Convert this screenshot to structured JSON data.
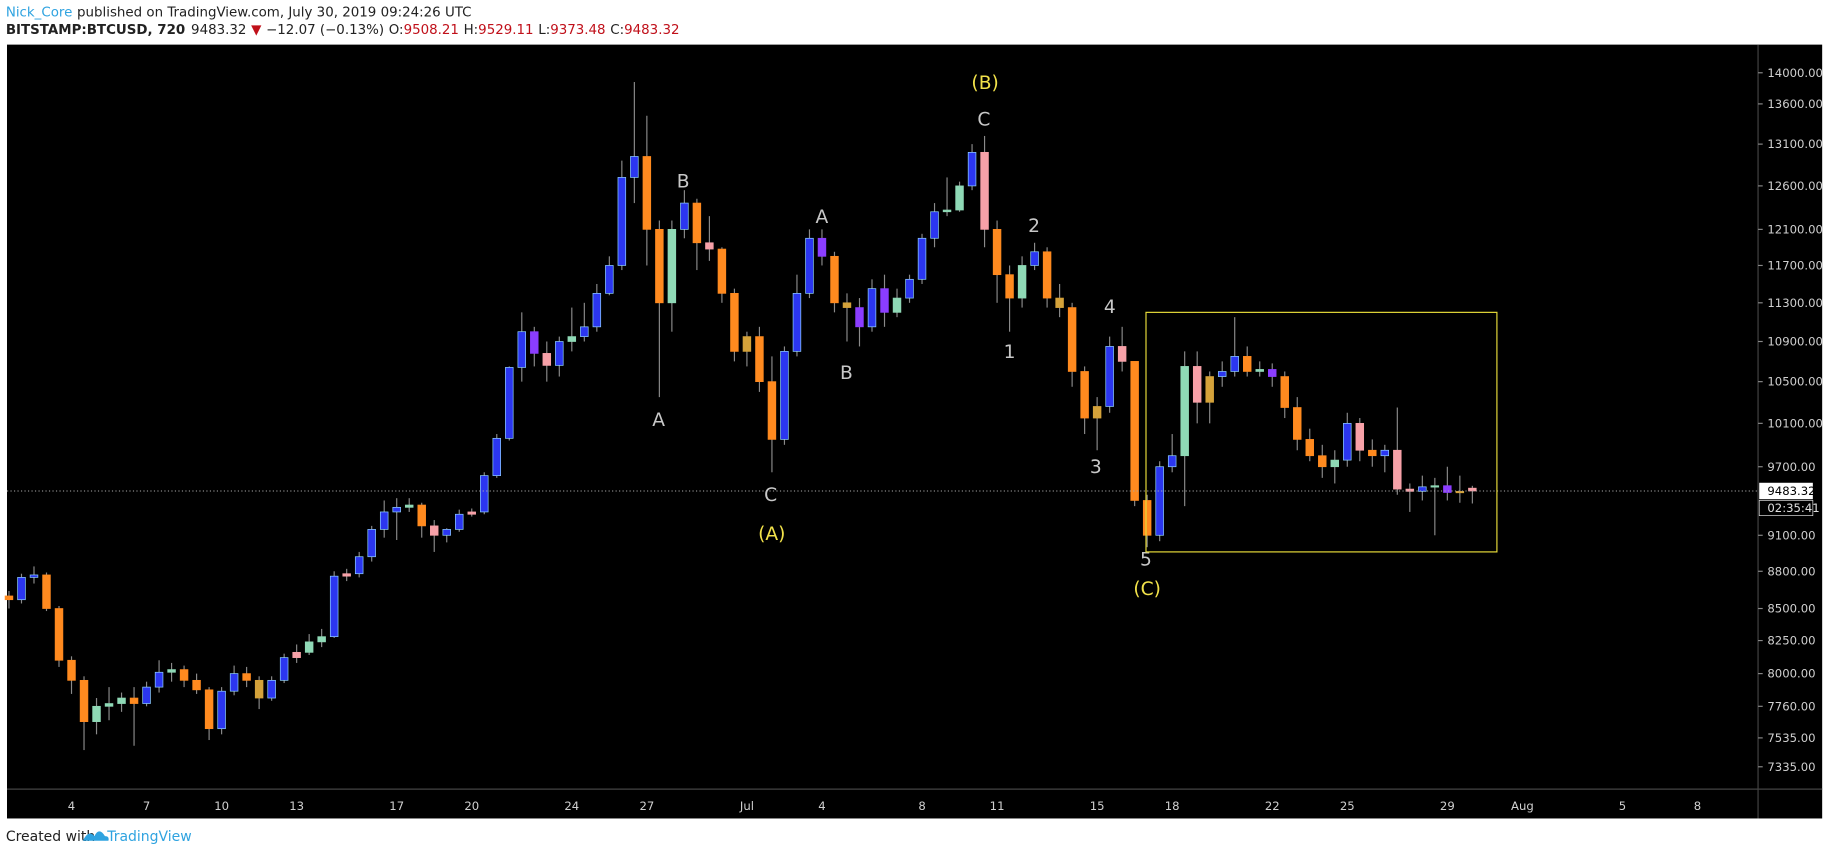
{
  "header": {
    "author": "Nick_Core",
    "published": "published on TradingView.com, July 30, 2019 09:24:26 UTC",
    "symbol": "BITSTAMP:BTCUSD, 720",
    "last": "9483.32",
    "arrow": "▼",
    "change": "−12.07 (−0.13%)",
    "o_label": "O:",
    "o": "9508.21",
    "h_label": "H:",
    "h": "9529.11",
    "l_label": "L:",
    "l": "9373.48",
    "c_label": "C:",
    "c": "9483.32"
  },
  "footer": {
    "created": "Created with",
    "brand": "TradingView"
  },
  "chart_data": {
    "type": "candlestick",
    "log": true,
    "ylim": [
      7184,
      14372
    ],
    "yticks": [
      {
        "value": 14000,
        "label": "14000.00"
      },
      {
        "value": 13600,
        "label": "13600.00"
      },
      {
        "value": 13100,
        "label": "13100.00"
      },
      {
        "value": 12600,
        "label": "12600.00"
      },
      {
        "value": 12100,
        "label": "12100.00"
      },
      {
        "value": 11700,
        "label": "11700.00"
      },
      {
        "value": 11300,
        "label": "11300.00"
      },
      {
        "value": 10900,
        "label": "10900.00"
      },
      {
        "value": 10500,
        "label": "10500.00"
      },
      {
        "value": 10100,
        "label": "10100.00"
      },
      {
        "value": 9700,
        "label": "9700.00"
      },
      {
        "value": 9100,
        "label": "9100.00"
      },
      {
        "value": 8800,
        "label": "8800.00"
      },
      {
        "value": 8500,
        "label": "8500.00"
      },
      {
        "value": 8250,
        "label": "8250.00"
      },
      {
        "value": 8000,
        "label": "8000.00"
      },
      {
        "value": 7760,
        "label": "7760.00"
      },
      {
        "value": 7535,
        "label": "7535.00"
      },
      {
        "value": 7335,
        "label": "7335.00"
      }
    ],
    "categories": [
      null,
      null,
      null,
      null,
      null,
      "4",
      null,
      null,
      null,
      null,
      null,
      "7",
      null,
      null,
      null,
      null,
      null,
      "10",
      null,
      null,
      null,
      null,
      null,
      "13",
      null,
      null,
      null,
      null,
      null,
      null,
      null,
      "17",
      null,
      null,
      null,
      null,
      null,
      "20",
      null,
      null,
      null,
      null,
      null,
      null,
      null,
      "24",
      null,
      null,
      null,
      null,
      null,
      "27",
      null,
      null,
      null,
      null,
      null,
      null,
      null,
      "Jul",
      null,
      null,
      null,
      null,
      null,
      "4",
      null,
      null,
      null,
      null,
      null,
      null,
      null,
      "8",
      null,
      null,
      null,
      null,
      null,
      "11",
      null,
      null,
      null,
      null,
      null,
      null,
      null,
      "15",
      null,
      null,
      null,
      null,
      null,
      "18",
      null,
      null,
      null,
      null,
      null,
      null,
      null,
      "22",
      null,
      null,
      null,
      null,
      null,
      "25",
      null,
      null,
      null,
      null,
      null,
      null,
      null,
      "29",
      null,
      null,
      null,
      null,
      null,
      "Aug",
      null,
      null,
      null,
      null,
      null,
      null,
      null,
      "5",
      null,
      null,
      null,
      null,
      null,
      "8",
      null,
      null,
      null,
      null
    ],
    "ohlc": [
      [
        8600,
        8640,
        8500,
        8570
      ],
      [
        8570,
        8780,
        8540,
        8750
      ],
      [
        8750,
        8840,
        8700,
        8770
      ],
      [
        8770,
        8790,
        8480,
        8500
      ],
      [
        8500,
        8520,
        8050,
        8100
      ],
      [
        8100,
        8130,
        7850,
        7950
      ],
      [
        7950,
        7980,
        7450,
        7650
      ],
      [
        7650,
        7820,
        7560,
        7760
      ],
      [
        7760,
        7900,
        7660,
        7780
      ],
      [
        7780,
        7860,
        7720,
        7820
      ],
      [
        7820,
        7900,
        7480,
        7780
      ],
      [
        7780,
        7940,
        7760,
        7900
      ],
      [
        7900,
        8100,
        7860,
        8010
      ],
      [
        8010,
        8080,
        7940,
        8030
      ],
      [
        8030,
        8060,
        7900,
        7950
      ],
      [
        7950,
        8000,
        7850,
        7880
      ],
      [
        7880,
        7900,
        7520,
        7600
      ],
      [
        7600,
        7900,
        7560,
        7870
      ],
      [
        7870,
        8060,
        7840,
        8000
      ],
      [
        8000,
        8050,
        7900,
        7950
      ],
      [
        7950,
        7980,
        7740,
        7820
      ],
      [
        7820,
        7980,
        7800,
        7950
      ],
      [
        7950,
        8150,
        7930,
        8120
      ],
      [
        8120,
        8220,
        8080,
        8160
      ],
      [
        8160,
        8300,
        8140,
        8240
      ],
      [
        8240,
        8340,
        8200,
        8280
      ],
      [
        8280,
        8800,
        8270,
        8760
      ],
      [
        8760,
        8820,
        8720,
        8780
      ],
      [
        8780,
        8960,
        8750,
        8920
      ],
      [
        8920,
        9180,
        8880,
        9150
      ],
      [
        9150,
        9400,
        9080,
        9300
      ],
      [
        9300,
        9420,
        9060,
        9340
      ],
      [
        9340,
        9420,
        9300,
        9360
      ],
      [
        9360,
        9380,
        9080,
        9180
      ],
      [
        9180,
        9230,
        8960,
        9100
      ],
      [
        9100,
        9160,
        9040,
        9150
      ],
      [
        9150,
        9320,
        9130,
        9280
      ],
      [
        9280,
        9330,
        9260,
        9300
      ],
      [
        9300,
        9650,
        9280,
        9620
      ],
      [
        9620,
        10000,
        9600,
        9960
      ],
      [
        9960,
        10650,
        9940,
        10640
      ],
      [
        10640,
        11200,
        10500,
        11000
      ],
      [
        11000,
        11050,
        10650,
        10780
      ],
      [
        10780,
        10900,
        10500,
        10660
      ],
      [
        10660,
        10950,
        10550,
        10900
      ],
      [
        10900,
        11250,
        10800,
        10950
      ],
      [
        10950,
        11300,
        10900,
        11050
      ],
      [
        11050,
        11500,
        11000,
        11400
      ],
      [
        11400,
        11800,
        11380,
        11700
      ],
      [
        11700,
        12900,
        11650,
        12700
      ],
      [
        12700,
        13880,
        12400,
        12950
      ],
      [
        12950,
        13450,
        11700,
        12100
      ],
      [
        12100,
        12200,
        10350,
        11300
      ],
      [
        11300,
        12200,
        11000,
        12100
      ],
      [
        12100,
        12550,
        12000,
        12400
      ],
      [
        12400,
        12450,
        11650,
        11950
      ],
      [
        11950,
        12250,
        11750,
        11880
      ],
      [
        11880,
        11900,
        11300,
        11400
      ],
      [
        11400,
        11450,
        10700,
        10800
      ],
      [
        10800,
        11000,
        10650,
        10950
      ],
      [
        10950,
        11050,
        10400,
        10500
      ],
      [
        10500,
        10750,
        9650,
        9950
      ],
      [
        9950,
        10850,
        9900,
        10800
      ],
      [
        10800,
        11600,
        10750,
        11400
      ],
      [
        11400,
        12100,
        11350,
        12000
      ],
      [
        12000,
        12100,
        11700,
        11800
      ],
      [
        11800,
        11850,
        11200,
        11300
      ],
      [
        11300,
        11400,
        10900,
        11250
      ],
      [
        11250,
        11350,
        10850,
        11050
      ],
      [
        11050,
        11550,
        11000,
        11450
      ],
      [
        11450,
        11600,
        11050,
        11200
      ],
      [
        11200,
        11450,
        11150,
        11350
      ],
      [
        11350,
        11600,
        11300,
        11550
      ],
      [
        11550,
        12050,
        11500,
        12000
      ],
      [
        12000,
        12400,
        11900,
        12300
      ],
      [
        12300,
        12700,
        12250,
        12320
      ],
      [
        12320,
        12650,
        12300,
        12600
      ],
      [
        12600,
        13100,
        12550,
        13000
      ],
      [
        13000,
        13200,
        11900,
        12100
      ],
      [
        12100,
        12200,
        11300,
        11600
      ],
      [
        11600,
        11700,
        11000,
        11350
      ],
      [
        11350,
        11800,
        11250,
        11700
      ],
      [
        11700,
        11950,
        11650,
        11850
      ],
      [
        11850,
        11900,
        11250,
        11350
      ],
      [
        11350,
        11500,
        11150,
        11250
      ],
      [
        11250,
        11300,
        10450,
        10600
      ],
      [
        10600,
        10650,
        10000,
        10150
      ],
      [
        10150,
        10350,
        9850,
        10260
      ],
      [
        10260,
        10950,
        10200,
        10850
      ],
      [
        10850,
        11050,
        10600,
        10700
      ],
      [
        10700,
        10700,
        9350,
        9400
      ],
      [
        9400,
        9450,
        9000,
        9100
      ],
      [
        9100,
        9750,
        9050,
        9700
      ],
      [
        9700,
        10000,
        9650,
        9800
      ],
      [
        9800,
        10800,
        9350,
        10650
      ],
      [
        10650,
        10800,
        10100,
        10300
      ],
      [
        10300,
        10600,
        10100,
        10550
      ],
      [
        10550,
        10700,
        10450,
        10600
      ],
      [
        10600,
        11150,
        10550,
        10750
      ],
      [
        10750,
        10850,
        10550,
        10600
      ],
      [
        10600,
        10700,
        10550,
        10620
      ],
      [
        10620,
        10680,
        10450,
        10550
      ],
      [
        10550,
        10600,
        10150,
        10250
      ],
      [
        10250,
        10350,
        9850,
        9950
      ],
      [
        9950,
        10050,
        9750,
        9800
      ],
      [
        9800,
        9900,
        9600,
        9700
      ],
      [
        9700,
        9850,
        9550,
        9760
      ],
      [
        9760,
        10200,
        9700,
        10100
      ],
      [
        10100,
        10150,
        9750,
        9850
      ],
      [
        9850,
        9950,
        9700,
        9800
      ],
      [
        9800,
        9900,
        9650,
        9850
      ],
      [
        9850,
        10250,
        9450,
        9500
      ],
      [
        9500,
        9550,
        9300,
        9480
      ],
      [
        9480,
        9620,
        9400,
        9520
      ],
      [
        9520,
        9600,
        9100,
        9530
      ],
      [
        9530,
        9700,
        9400,
        9470
      ],
      [
        9470,
        9620,
        9380,
        9480
      ],
      [
        9508.21,
        9529.11,
        9373.48,
        9483.32
      ],
      null,
      null,
      null,
      null,
      null,
      null,
      null,
      null,
      null,
      null,
      null,
      null,
      null,
      null,
      null,
      null,
      null,
      null,
      null,
      null,
      null,
      null
    ],
    "colors": [
      "#ff8a1f",
      "#2b36f0",
      "#2b36f0",
      "#ff8a1f",
      "#ff8a1f",
      "#ff8a1f",
      "#ff8a1f",
      "#8fd9b6",
      "#8fd9b6",
      "#8fd9b6",
      "#ff8a1f",
      "#2b36f0",
      "#2b36f0",
      "#8fd9b6",
      "#ff8a1f",
      "#ff8a1f",
      "#ff8a1f",
      "#2b36f0",
      "#2b36f0",
      "#ff8a1f",
      "#d4a23a",
      "#2b36f0",
      "#2b36f0",
      "#f7a1a8",
      "#8fd9b6",
      "#8fd9b6",
      "#2b36f0",
      "#f7a1a8",
      "#2b36f0",
      "#2b36f0",
      "#2b36f0",
      "#2b36f0",
      "#8fd9b6",
      "#ff8a1f",
      "#f7a1a8",
      "#2b36f0",
      "#2b36f0",
      "#f7a1a8",
      "#2b36f0",
      "#2b36f0",
      "#2b36f0",
      "#2b36f0",
      "#8b3dff",
      "#f7a1a8",
      "#2b36f0",
      "#8fd9b6",
      "#2b36f0",
      "#2b36f0",
      "#2b36f0",
      "#2b36f0",
      "#2b36f0",
      "#ff8a1f",
      "#ff8a1f",
      "#8fd9b6",
      "#2b36f0",
      "#ff8a1f",
      "#f7a1a8",
      "#ff8a1f",
      "#ff8a1f",
      "#d4a23a",
      "#ff8a1f",
      "#ff8a1f",
      "#2b36f0",
      "#2b36f0",
      "#2b36f0",
      "#8b3dff",
      "#ff8a1f",
      "#d4a23a",
      "#8b3dff",
      "#2b36f0",
      "#8b3dff",
      "#8fd9b6",
      "#2b36f0",
      "#2b36f0",
      "#2b36f0",
      "#8fd9b6",
      "#8fd9b6",
      "#2b36f0",
      "#f7a1a8",
      "#ff8a1f",
      "#ff8a1f",
      "#8fd9b6",
      "#2b36f0",
      "#ff8a1f",
      "#d4a23a",
      "#ff8a1f",
      "#ff8a1f",
      "#d4a23a",
      "#2b36f0",
      "#f7a1a8",
      "#ff8a1f",
      "#ff8a1f",
      "#2b36f0",
      "#2b36f0",
      "#8fd9b6",
      "#f7a1a8",
      "#d4a23a",
      "#2b36f0",
      "#2b36f0",
      "#ff8a1f",
      "#8fd9b6",
      "#8b3dff",
      "#ff8a1f",
      "#ff8a1f",
      "#ff8a1f",
      "#ff8a1f",
      "#8fd9b6",
      "#2b36f0",
      "#f7a1a8",
      "#ff8a1f",
      "#2b36f0",
      "#f7a1a8",
      "#f7a1a8",
      "#2b36f0",
      "#8fd9b6",
      "#8b3dff",
      "#d4a23a",
      "#f7a1a8",
      null,
      null,
      null,
      null,
      null,
      null,
      null,
      null,
      null,
      null,
      null,
      null,
      null,
      null,
      null,
      null,
      null,
      null,
      null,
      null,
      null,
      null
    ],
    "countdown": "02:35:41",
    "annotations": [
      "A",
      "B",
      "C",
      "(A)",
      "A",
      "B",
      "C",
      "(B)",
      "1",
      "2",
      "3",
      "4",
      "5",
      "(C)"
    ]
  }
}
